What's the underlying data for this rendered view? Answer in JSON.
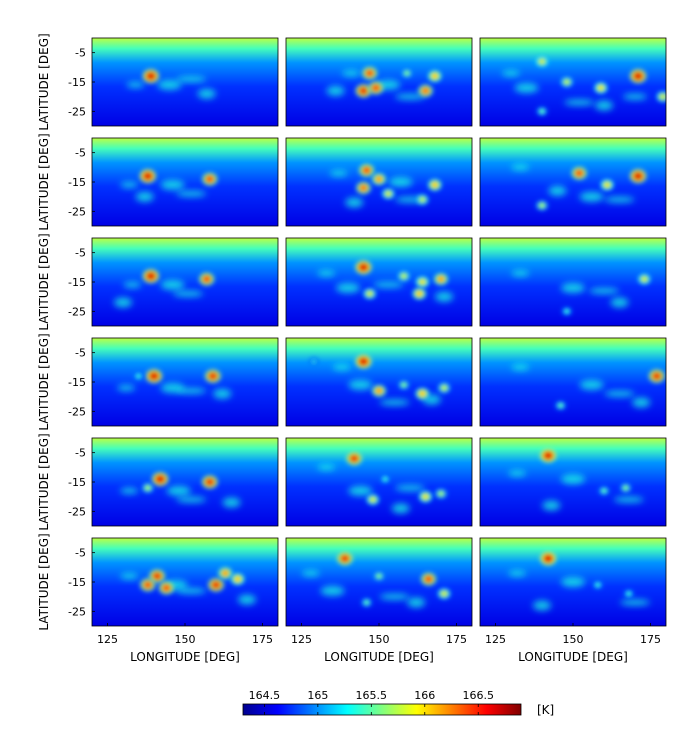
{
  "chart_data": {
    "type": "heatmap",
    "layout": {
      "rows": 6,
      "cols": 3
    },
    "xlabel": "LONGITUDE [DEG]",
    "ylabel": "LATITUDE [DEG]",
    "x_ticks": [
      125,
      150,
      175
    ],
    "y_ticks": [
      -5,
      -15,
      -25
    ],
    "xlim": [
      120,
      180
    ],
    "ylim": [
      -30,
      0
    ],
    "colorbar": {
      "unit": "[K]",
      "ticks": [
        164.5,
        165,
        165.5,
        166,
        166.5
      ],
      "tick_labels": [
        "164.5",
        "165",
        "165.5",
        "166",
        "166.5"
      ],
      "range": [
        164.3,
        166.9
      ],
      "colormap": "jet",
      "colors": [
        "#00008f",
        "#0000ff",
        "#0080ff",
        "#00ffff",
        "#80ff80",
        "#ffff00",
        "#ff8000",
        "#ff0000",
        "#800000"
      ]
    },
    "background_gradient": [
      [
        0.0,
        165.75
      ],
      [
        0.12,
        165.45
      ],
      [
        0.28,
        165.0
      ],
      [
        0.55,
        164.75
      ],
      [
        1.0,
        164.55
      ]
    ],
    "panels": [
      {
        "row": 1,
        "col": 1,
        "hotspots": [
          [
            139,
            -13,
            166.8
          ]
        ],
        "filaments": [
          [
            134,
            -16
          ],
          [
            145,
            -16
          ],
          [
            152,
            -14
          ],
          [
            157,
            -19
          ]
        ]
      },
      {
        "row": 1,
        "col": 2,
        "hotspots": [
          [
            147,
            -12,
            166.6
          ],
          [
            145,
            -18,
            166.7
          ],
          [
            149,
            -17,
            166.6
          ],
          [
            168,
            -13,
            166.3
          ],
          [
            165,
            -18,
            166.5
          ],
          [
            159,
            -12,
            165.8
          ]
        ],
        "filaments": [
          [
            141,
            -12
          ],
          [
            153,
            -16
          ],
          [
            160,
            -20
          ],
          [
            136,
            -18
          ]
        ]
      },
      {
        "row": 1,
        "col": 3,
        "hotspots": [
          [
            140,
            -8,
            166.1
          ],
          [
            148,
            -15,
            166.0
          ],
          [
            159,
            -17,
            166.2
          ],
          [
            171,
            -13,
            166.8
          ],
          [
            179,
            -20,
            166.1
          ],
          [
            140,
            -25,
            165.7
          ]
        ],
        "filaments": [
          [
            130,
            -12
          ],
          [
            135,
            -17
          ],
          [
            152,
            -22
          ],
          [
            160,
            -23
          ],
          [
            170,
            -20
          ]
        ]
      },
      {
        "row": 2,
        "col": 1,
        "hotspots": [
          [
            138,
            -13,
            166.8
          ],
          [
            158,
            -14,
            166.6
          ]
        ],
        "filaments": [
          [
            132,
            -16
          ],
          [
            146,
            -16
          ],
          [
            152,
            -19
          ],
          [
            137,
            -20
          ]
        ]
      },
      {
        "row": 2,
        "col": 2,
        "hotspots": [
          [
            146,
            -11,
            166.6
          ],
          [
            150,
            -14,
            166.4
          ],
          [
            145,
            -17,
            166.5
          ],
          [
            153,
            -19,
            166.1
          ],
          [
            168,
            -16,
            166.3
          ],
          [
            164,
            -21,
            166.0
          ]
        ],
        "filaments": [
          [
            137,
            -12
          ],
          [
            157,
            -15
          ],
          [
            160,
            -21
          ],
          [
            142,
            -22
          ]
        ]
      },
      {
        "row": 2,
        "col": 3,
        "hotspots": [
          [
            152,
            -12,
            166.6
          ],
          [
            161,
            -16,
            166.2
          ],
          [
            171,
            -13,
            166.8
          ],
          [
            140,
            -23,
            165.9
          ]
        ],
        "filaments": [
          [
            133,
            -10
          ],
          [
            156,
            -20
          ],
          [
            165,
            -21
          ],
          [
            145,
            -18
          ]
        ]
      },
      {
        "row": 3,
        "col": 1,
        "hotspots": [
          [
            139,
            -13,
            166.8
          ],
          [
            157,
            -14,
            166.6
          ]
        ],
        "filaments": [
          [
            133,
            -16
          ],
          [
            146,
            -16
          ],
          [
            151,
            -19
          ],
          [
            130,
            -22
          ]
        ]
      },
      {
        "row": 3,
        "col": 2,
        "hotspots": [
          [
            145,
            -10,
            166.8
          ],
          [
            158,
            -13,
            166.0
          ],
          [
            164,
            -15,
            166.2
          ],
          [
            170,
            -14,
            166.4
          ],
          [
            147,
            -19,
            166.1
          ],
          [
            163,
            -19,
            166.3
          ]
        ],
        "filaments": [
          [
            133,
            -12
          ],
          [
            140,
            -17
          ],
          [
            153,
            -16
          ],
          [
            171,
            -20
          ]
        ]
      },
      {
        "row": 3,
        "col": 3,
        "hotspots": [
          [
            173,
            -14,
            166.1
          ],
          [
            148,
            -25,
            165.6
          ]
        ],
        "filaments": [
          [
            133,
            -12
          ],
          [
            150,
            -17
          ],
          [
            160,
            -18
          ],
          [
            165,
            -22
          ]
        ]
      },
      {
        "row": 4,
        "col": 1,
        "hotspots": [
          [
            140,
            -13,
            166.8
          ],
          [
            159,
            -13,
            166.7
          ],
          [
            135,
            -13,
            165.6
          ]
        ],
        "filaments": [
          [
            131,
            -17
          ],
          [
            146,
            -17
          ],
          [
            152,
            -18
          ],
          [
            162,
            -19
          ]
        ]
      },
      {
        "row": 4,
        "col": 2,
        "hotspots": [
          [
            145,
            -8,
            166.8
          ],
          [
            150,
            -18,
            166.4
          ],
          [
            164,
            -19,
            166.3
          ],
          [
            171,
            -17,
            166.0
          ],
          [
            158,
            -16,
            165.8
          ],
          [
            129,
            -8,
            165.5
          ]
        ],
        "filaments": [
          [
            138,
            -10
          ],
          [
            144,
            -16
          ],
          [
            155,
            -22
          ],
          [
            167,
            -21
          ]
        ]
      },
      {
        "row": 4,
        "col": 3,
        "hotspots": [
          [
            177,
            -13,
            166.7
          ],
          [
            146,
            -23,
            165.7
          ]
        ],
        "filaments": [
          [
            133,
            -10
          ],
          [
            156,
            -16
          ],
          [
            165,
            -19
          ],
          [
            172,
            -22
          ]
        ]
      },
      {
        "row": 5,
        "col": 1,
        "hotspots": [
          [
            142,
            -14,
            166.8
          ],
          [
            158,
            -15,
            166.7
          ],
          [
            138,
            -17,
            165.9
          ]
        ],
        "filaments": [
          [
            132,
            -18
          ],
          [
            148,
            -18
          ],
          [
            152,
            -21
          ],
          [
            165,
            -22
          ]
        ]
      },
      {
        "row": 5,
        "col": 2,
        "hotspots": [
          [
            142,
            -7,
            166.7
          ],
          [
            148,
            -21,
            166.1
          ],
          [
            165,
            -20,
            166.2
          ],
          [
            170,
            -19,
            165.9
          ],
          [
            152,
            -14,
            165.6
          ]
        ],
        "filaments": [
          [
            133,
            -10
          ],
          [
            144,
            -18
          ],
          [
            160,
            -17
          ],
          [
            157,
            -24
          ]
        ]
      },
      {
        "row": 5,
        "col": 3,
        "hotspots": [
          [
            142,
            -6,
            166.8
          ],
          [
            160,
            -18,
            165.7
          ],
          [
            167,
            -17,
            165.8
          ]
        ],
        "filaments": [
          [
            132,
            -12
          ],
          [
            150,
            -14
          ],
          [
            168,
            -21
          ],
          [
            143,
            -23
          ]
        ]
      },
      {
        "row": 6,
        "col": 1,
        "hotspots": [
          [
            141,
            -13,
            166.7
          ],
          [
            138,
            -16,
            166.6
          ],
          [
            144,
            -17,
            166.6
          ],
          [
            160,
            -16,
            166.7
          ],
          [
            163,
            -12,
            166.4
          ],
          [
            167,
            -14,
            166.3
          ]
        ],
        "filaments": [
          [
            132,
            -13
          ],
          [
            147,
            -16
          ],
          [
            152,
            -18
          ],
          [
            170,
            -21
          ]
        ]
      },
      {
        "row": 6,
        "col": 2,
        "hotspots": [
          [
            139,
            -7,
            166.7
          ],
          [
            166,
            -14,
            166.6
          ],
          [
            150,
            -13,
            165.8
          ],
          [
            171,
            -19,
            166.1
          ],
          [
            146,
            -22,
            165.7
          ]
        ],
        "filaments": [
          [
            128,
            -12
          ],
          [
            135,
            -18
          ],
          [
            155,
            -20
          ],
          [
            162,
            -22
          ]
        ]
      },
      {
        "row": 6,
        "col": 3,
        "hotspots": [
          [
            142,
            -7,
            166.8
          ],
          [
            158,
            -16,
            165.6
          ],
          [
            168,
            -19,
            165.6
          ]
        ],
        "filaments": [
          [
            132,
            -12
          ],
          [
            150,
            -15
          ],
          [
            170,
            -22
          ],
          [
            140,
            -23
          ]
        ]
      }
    ]
  }
}
